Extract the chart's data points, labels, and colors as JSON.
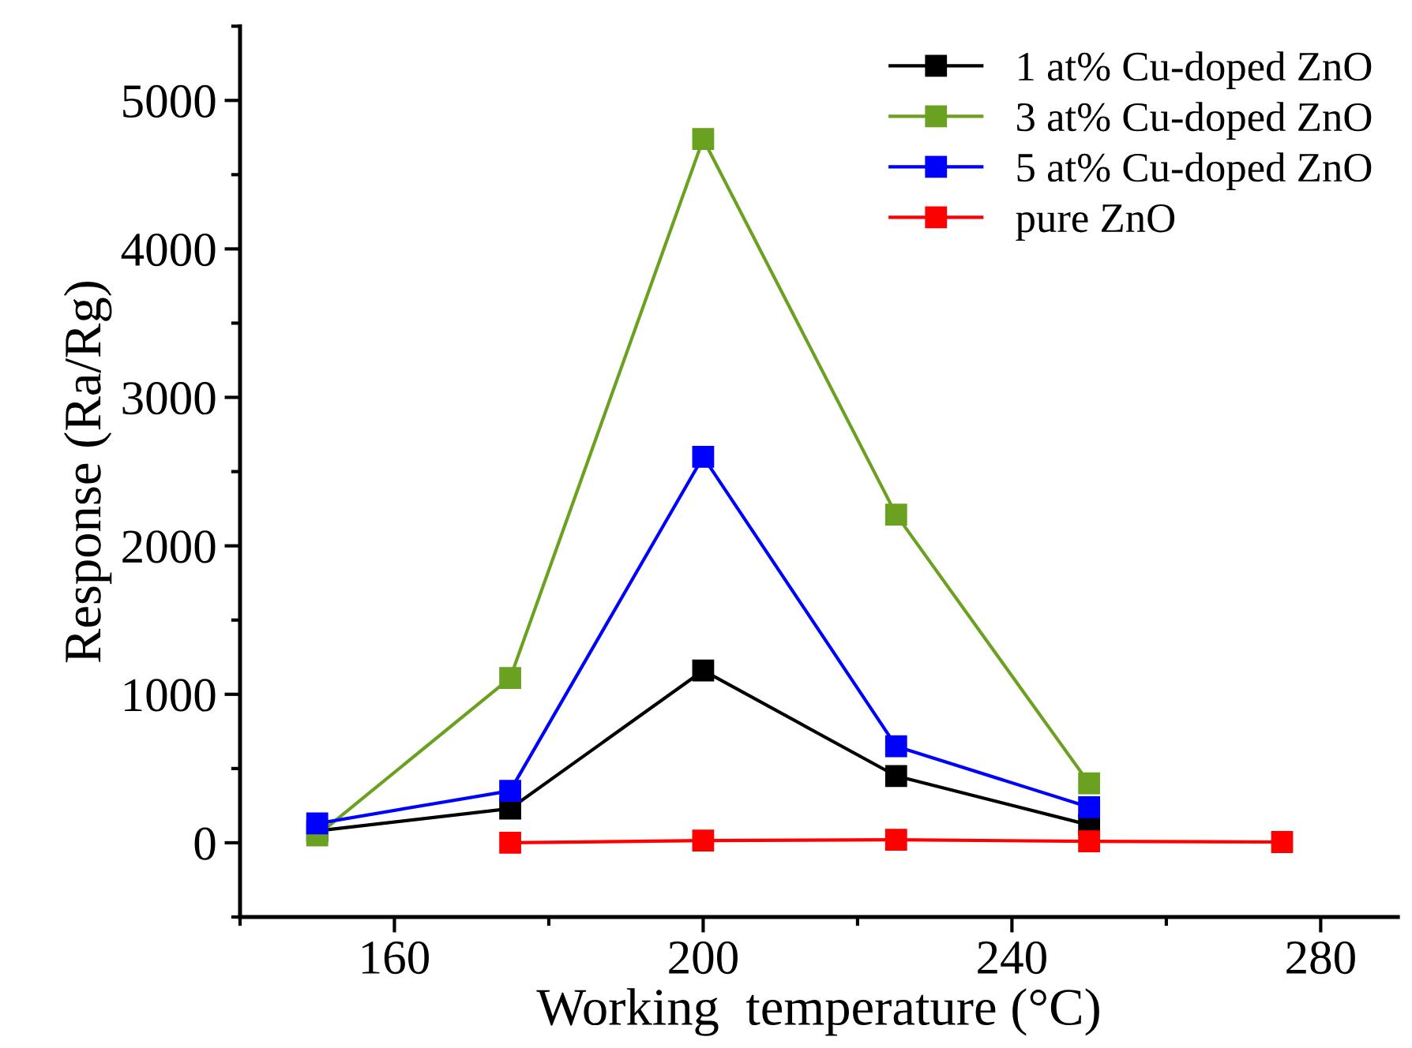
{
  "chart_data": {
    "type": "line",
    "xlabel": "Working  temperature (°C)",
    "ylabel": "Response (Ra/Rg)",
    "x": [
      150,
      175,
      200,
      225,
      250
    ],
    "series": [
      {
        "name": "1 at% Cu-doped ZnO",
        "color": "#000000",
        "values": [
          80,
          230,
          1160,
          450,
          120
        ]
      },
      {
        "name": "3 at% Cu-doped ZnO",
        "color": "#6aa121",
        "values": [
          50,
          1110,
          4740,
          2210,
          400
        ]
      },
      {
        "name": "5 at% Cu-doped ZnO",
        "color": "#0000ff",
        "values": [
          130,
          350,
          2600,
          650,
          240
        ]
      },
      {
        "name": "pure ZnO",
        "color": "#ff0000",
        "x": [
          175,
          200,
          225,
          250,
          275
        ],
        "values": [
          0,
          15,
          20,
          10,
          5
        ]
      }
    ],
    "xlim": [
      140,
      290
    ],
    "xticks": [
      160,
      200,
      240,
      280
    ],
    "ylim": [
      -500,
      5500
    ],
    "yticks": [
      0,
      1000,
      2000,
      3000,
      4000,
      5000
    ],
    "marker": "square",
    "line_style": "solid",
    "grid": false,
    "legend": "top right"
  }
}
